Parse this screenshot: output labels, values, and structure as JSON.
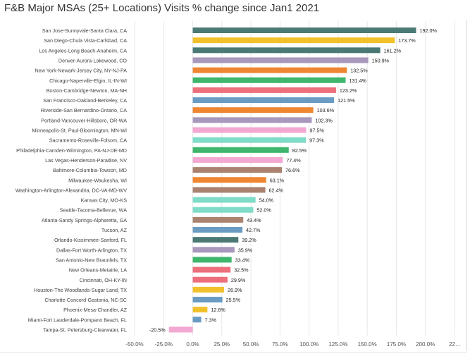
{
  "title": "F&B Major MSAs (25+ Locations) Visits % change since Jan1 2021",
  "chart_data": {
    "type": "bar",
    "orientation": "horizontal",
    "title": "F&B Major MSAs (25+ Locations) Visits % change since Jan1 2021",
    "xlim": [
      -50,
      225
    ],
    "x_ticks": [
      "-50.0%",
      "-25.0%",
      "0.0%",
      "25.0%",
      "50.0%",
      "75.0%",
      "100.0%",
      "125.0%",
      "150.0%",
      "175.0%",
      "200.0%",
      "22…"
    ],
    "grid": true,
    "categories": [
      "San Jose-Sunnyvale-Santa Clara, CA",
      "San Diego-Chula Vista-Carlsbad, CA",
      "Los Angeles-Long Beach-Anaheim, CA",
      "Denver-Aurora-Lakewood, CO",
      "New York-Newark-Jersey City, NY-NJ-PA",
      "Chicago-Naperville-Elgin, IL-IN-WI",
      "Boston-Cambridge-Newton, MA-NH",
      "San Francisco-Oakland-Berkeley, CA",
      "Riverside-San Bernardino-Ontario, CA",
      "Portland-Vancouver-Hillsboro, OR-WA",
      "Minneapolis-St. Paul-Bloomington, MN-WI",
      "Sacramento-Roseville-Folsom, CA",
      "Philadelphia-Camden-Wilmington, PA-NJ-DE-MD",
      "Las Vegas-Henderson-Paradise, NV",
      "Baltimore-Columbia-Towson, MD",
      "Milwaukee-Waukesha, WI",
      "Washington-Arlington-Alexandria, DC-VA-MD-WV",
      "Kansas City, MO-KS",
      "Seattle-Tacoma-Bellevue, WA",
      "Atlanta-Sandy Springs-Alpharetta, GA",
      "Tucson, AZ",
      "Orlando-Kissimmee-Sanford, FL",
      "Dallas-Fort Worth-Arlington, TX",
      "San Antonio-New Braunfels, TX",
      "New Orleans-Metairie, LA",
      "Cincinnati, OH-KY-IN",
      "Houston-The Woodlands-Sugar Land, TX",
      "Charlotte-Concord-Gastonia, NC-SC",
      "Phoenix-Mesa-Chandler, AZ",
      "Miami-Fort Lauderdale-Pompano Beach, FL",
      "Tampa-St. Petersburg-Clearwater, FL"
    ],
    "values": [
      192.0,
      173.7,
      161.2,
      150.9,
      132.5,
      131.4,
      123.2,
      121.5,
      103.6,
      102.3,
      97.5,
      97.3,
      82.5,
      77.4,
      76.6,
      63.1,
      62.4,
      54.0,
      52.0,
      43.4,
      42.7,
      39.2,
      35.9,
      33.4,
      32.5,
      29.9,
      26.9,
      25.5,
      12.6,
      7.3,
      -20.5
    ],
    "value_labels": [
      "192.0%",
      "173.7%",
      "161.2%",
      "150.9%",
      "132.5%",
      "131.4%",
      "123.2%",
      "121.5%",
      "103.6%",
      "102.3%",
      "97.5%",
      "97.3%",
      "82.5%",
      "77.4%",
      "76.6%",
      "63.1%",
      "62.4%",
      "54.0%",
      "52.0%",
      "43.4%",
      "42.7%",
      "39.2%",
      "35.9%",
      "33.4%",
      "32.5%",
      "29.9%",
      "26.9%",
      "25.5%",
      "12.6%",
      "7.3%",
      "-20.5%"
    ],
    "colors": [
      "#4a7a73",
      "#f2c02a",
      "#4a7a73",
      "#a898bc",
      "#ef8632",
      "#3eb66c",
      "#ed6f7c",
      "#6a9cc3",
      "#ef8632",
      "#a898bc",
      "#f2a8d2",
      "#7fdcc8",
      "#3eb66c",
      "#f2a8d2",
      "#a98270",
      "#ef8632",
      "#a98270",
      "#7fdcc8",
      "#7fdcc8",
      "#a98270",
      "#6a9cc3",
      "#4a7a73",
      "#a898bc",
      "#3eb66c",
      "#ed6f7c",
      "#ed6f7c",
      "#f2c02a",
      "#6a9cc3",
      "#f2c02a",
      "#6a9cc3",
      "#f2a8d2"
    ]
  }
}
